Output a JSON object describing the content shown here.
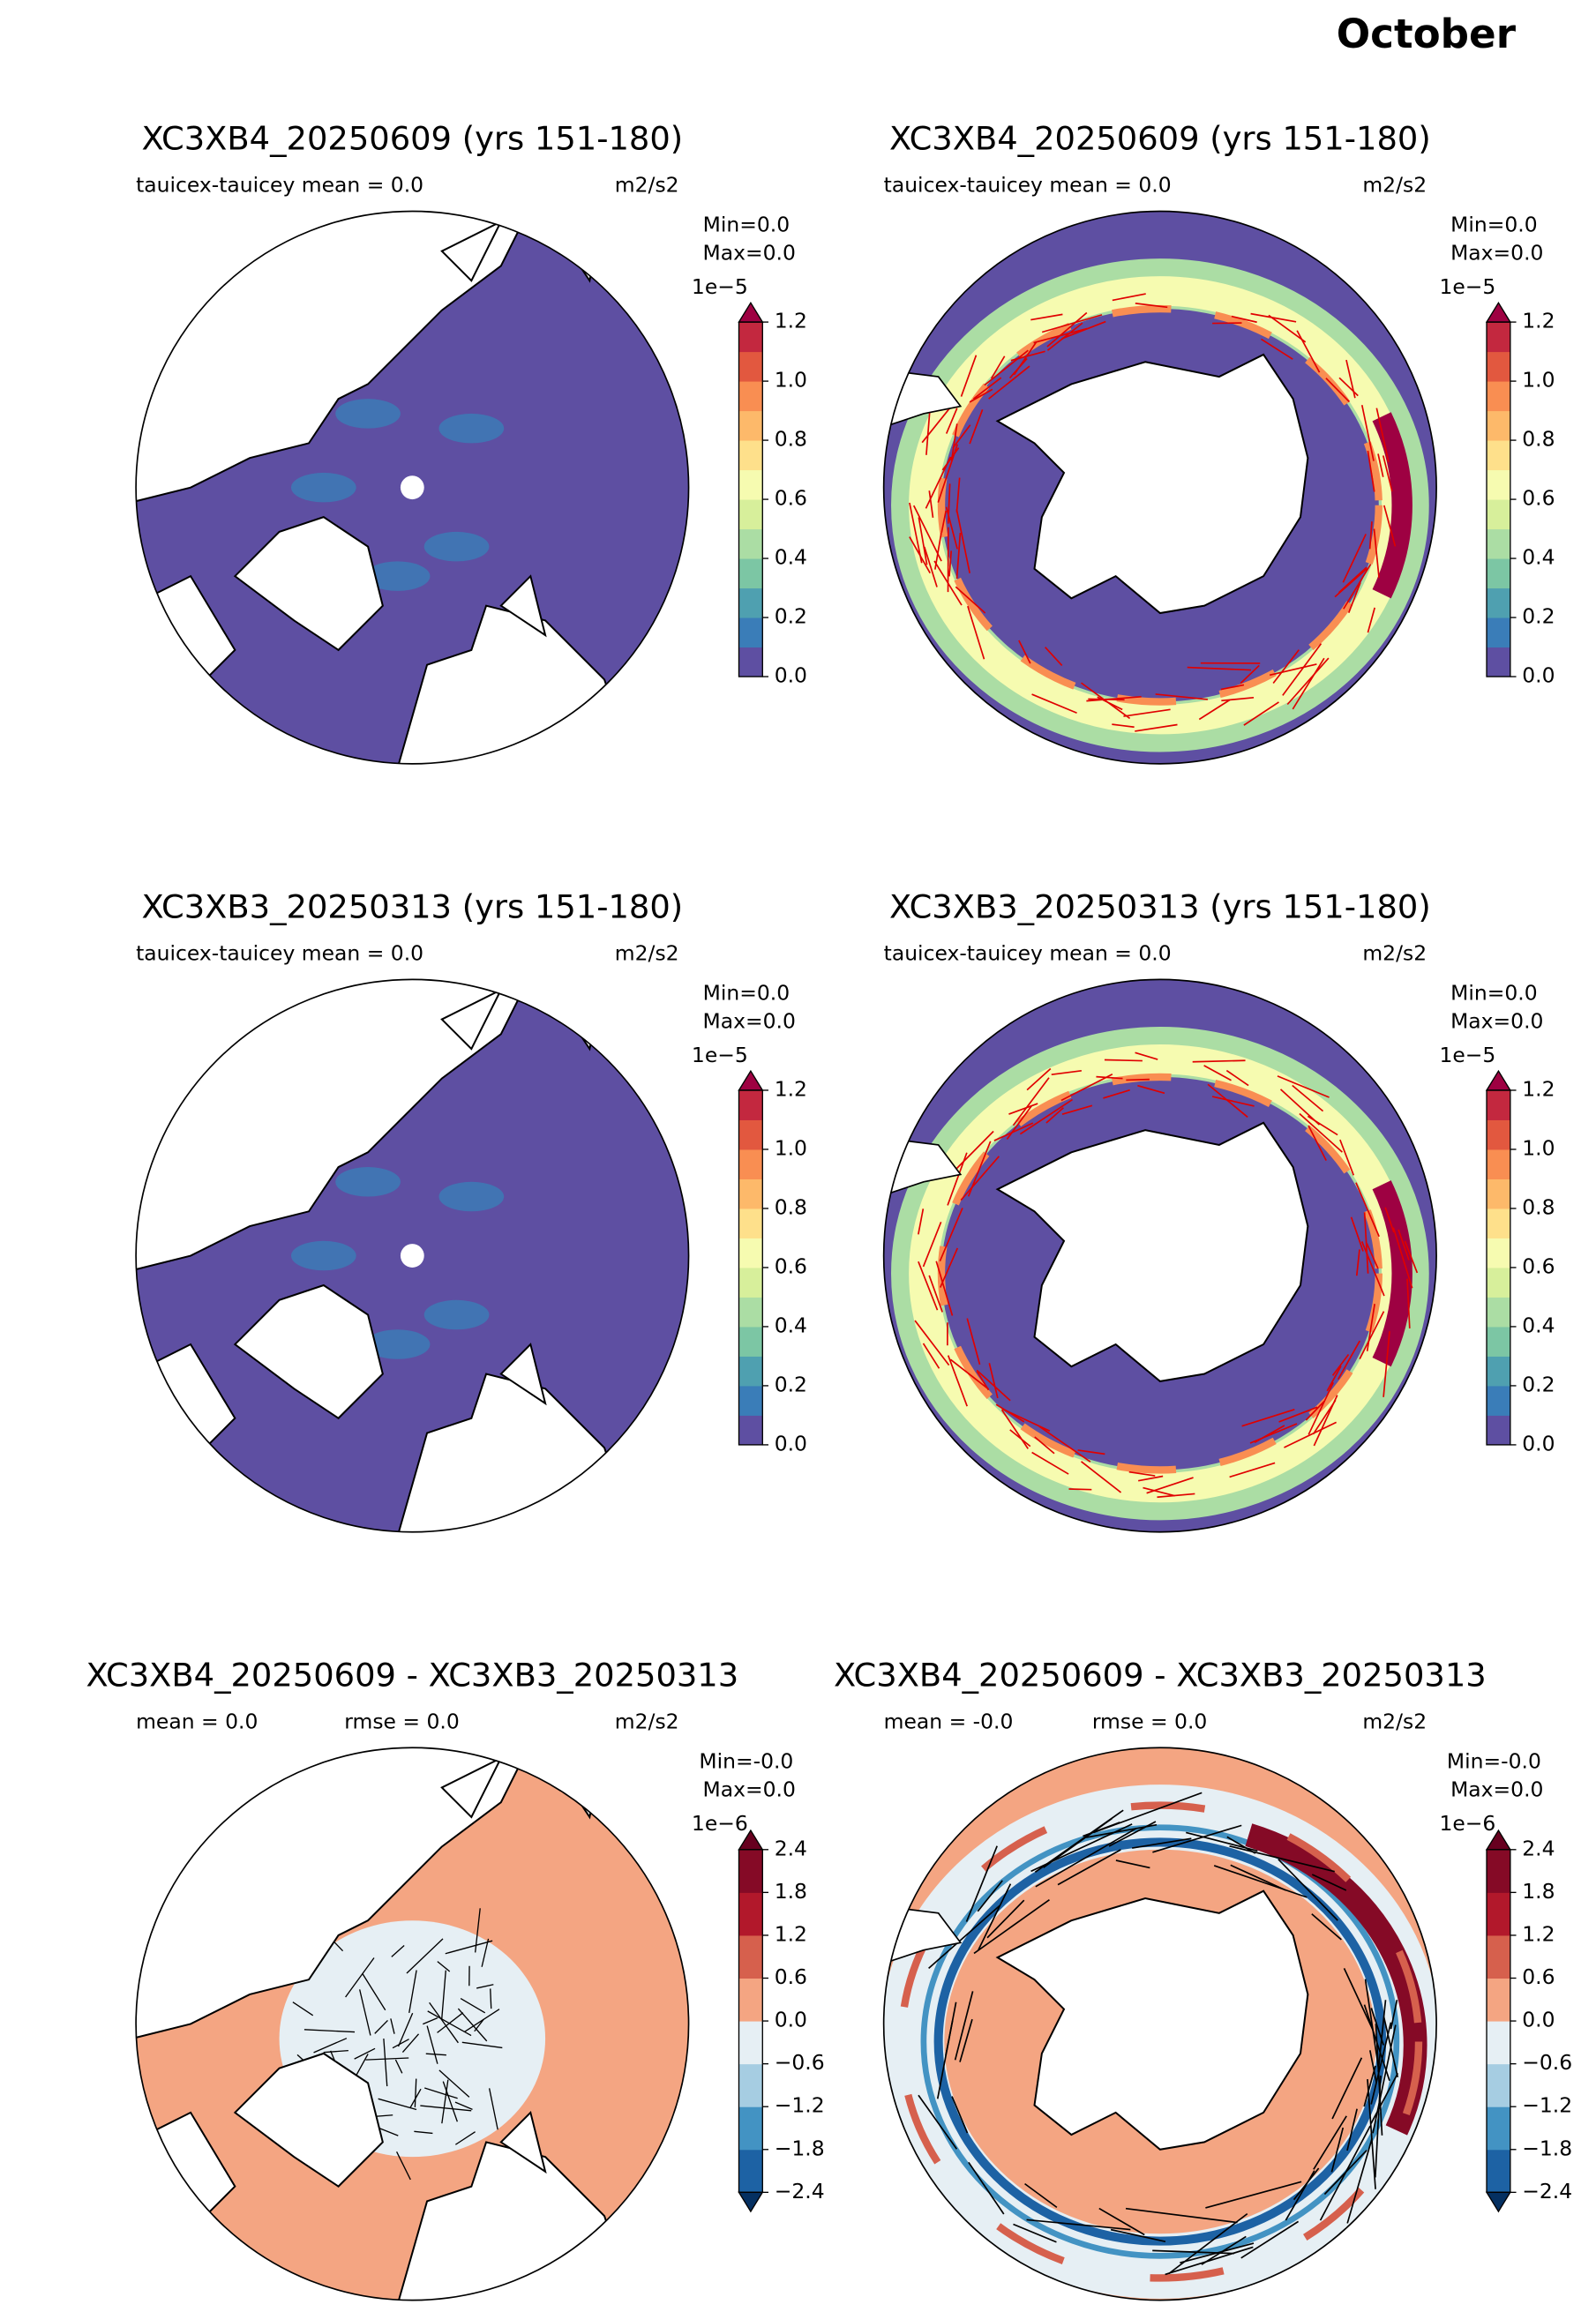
{
  "figure_title": "October",
  "panels": [
    {
      "title": "XC3XB4_20250609 (yrs 151-180)",
      "stats": [
        "tauicex-tauicey  mean = 0.0"
      ],
      "units": "m2/s2",
      "min_label": "Min=0.0",
      "max_label": "Max=0.0",
      "colorbar": {
        "scale_label": "1e−5",
        "extend": "max",
        "ticks": [
          {
            "value": 0,
            "label": "0.0"
          },
          0.2,
          0.4,
          0.6,
          0.8,
          {
            "value": 1,
            "label": "1.0"
          },
          1.2
        ],
        "colors": [
          "#5e4fa2",
          "#3a7db8",
          "#4fa0b0",
          "#7cc6a4",
          "#abdda4",
          "#d7ef9b",
          "#f6fbb0",
          "#fee08b",
          "#fdb96a",
          "#f98e52",
          "#e2583f",
          "#c3283f"
        ],
        "over_color": "#9e0142"
      }
    },
    {
      "title": "XC3XB4_20250609 (yrs 151-180)",
      "stats": [
        "tauicex-tauicey  mean = 0.0"
      ],
      "units": "m2/s2",
      "min_label": "Min=0.0",
      "max_label": "Max=0.0",
      "colorbar": {
        "scale_label": "1e−5",
        "extend": "max",
        "ticks": [
          {
            "value": 0,
            "label": "0.0"
          },
          0.2,
          0.4,
          0.6,
          0.8,
          {
            "value": 1,
            "label": "1.0"
          },
          1.2
        ],
        "colors": [
          "#5e4fa2",
          "#3a7db8",
          "#4fa0b0",
          "#7cc6a4",
          "#abdda4",
          "#d7ef9b",
          "#f6fbb0",
          "#fee08b",
          "#fdb96a",
          "#f98e52",
          "#e2583f",
          "#c3283f"
        ],
        "over_color": "#9e0142"
      }
    },
    {
      "title": "XC3XB3_20250313 (yrs 151-180)",
      "stats": [
        "tauicex-tauicey  mean = 0.0"
      ],
      "units": "m2/s2",
      "min_label": "Min=0.0",
      "max_label": "Max=0.0",
      "colorbar": {
        "scale_label": "1e−5",
        "extend": "max",
        "ticks": [
          {
            "value": 0,
            "label": "0.0"
          },
          0.2,
          0.4,
          0.6,
          0.8,
          {
            "value": 1,
            "label": "1.0"
          },
          1.2
        ],
        "colors": [
          "#5e4fa2",
          "#3a7db8",
          "#4fa0b0",
          "#7cc6a4",
          "#abdda4",
          "#d7ef9b",
          "#f6fbb0",
          "#fee08b",
          "#fdb96a",
          "#f98e52",
          "#e2583f",
          "#c3283f"
        ],
        "over_color": "#9e0142"
      }
    },
    {
      "title": "XC3XB3_20250313 (yrs 151-180)",
      "stats": [
        "tauicex-tauicey  mean = 0.0"
      ],
      "units": "m2/s2",
      "min_label": "Min=0.0",
      "max_label": "Max=0.0",
      "colorbar": {
        "scale_label": "1e−5",
        "extend": "max",
        "ticks": [
          {
            "value": 0,
            "label": "0.0"
          },
          0.2,
          0.4,
          0.6,
          0.8,
          {
            "value": 1,
            "label": "1.0"
          },
          1.2
        ],
        "colors": [
          "#5e4fa2",
          "#3a7db8",
          "#4fa0b0",
          "#7cc6a4",
          "#abdda4",
          "#d7ef9b",
          "#f6fbb0",
          "#fee08b",
          "#fdb96a",
          "#f98e52",
          "#e2583f",
          "#c3283f"
        ],
        "over_color": "#9e0142"
      }
    },
    {
      "title": "XC3XB4_20250609 - XC3XB3_20250313",
      "stats": [
        "mean = 0.0",
        "rmse = 0.0"
      ],
      "units": "m2/s2",
      "min_label": "Min=-0.0",
      "max_label": "Max=0.0",
      "colorbar": {
        "scale_label": "1e−6",
        "extend": "both",
        "ticks": [
          {
            "value": -2.4,
            "label": "−2.4"
          },
          {
            "value": -1.8,
            "label": "−1.8"
          },
          {
            "value": -1.2,
            "label": "−1.2"
          },
          {
            "value": -0.6,
            "label": "−0.6"
          },
          {
            "value": 0,
            "label": "0.0"
          },
          0.6,
          1.2,
          1.8,
          2.4
        ],
        "colors": [
          "#1d62a4",
          "#4393c3",
          "#a6cde2",
          "#e6eff4",
          "#f4a582",
          "#d6604d",
          "#b2182b",
          "#850a26"
        ],
        "under_color": "#053061",
        "over_color": "#67001f"
      }
    },
    {
      "title": "XC3XB4_20250609 - XC3XB3_20250313",
      "stats": [
        "mean = -0.0",
        "rmse = 0.0"
      ],
      "units": "m2/s2",
      "min_label": "Min=-0.0",
      "max_label": "Max=0.0",
      "colorbar": {
        "scale_label": "1e−6",
        "extend": "both",
        "ticks": [
          {
            "value": -2.4,
            "label": "−2.4"
          },
          {
            "value": -1.8,
            "label": "−1.8"
          },
          {
            "value": -1.2,
            "label": "−1.2"
          },
          {
            "value": -0.6,
            "label": "−0.6"
          },
          {
            "value": 0,
            "label": "0.0"
          },
          0.6,
          1.2,
          1.8,
          2.4
        ],
        "colors": [
          "#1d62a4",
          "#4393c3",
          "#a6cde2",
          "#e6eff4",
          "#f4a582",
          "#d6604d",
          "#b2182b",
          "#850a26"
        ],
        "under_color": "#053061",
        "over_color": "#67001f"
      }
    }
  ]
}
